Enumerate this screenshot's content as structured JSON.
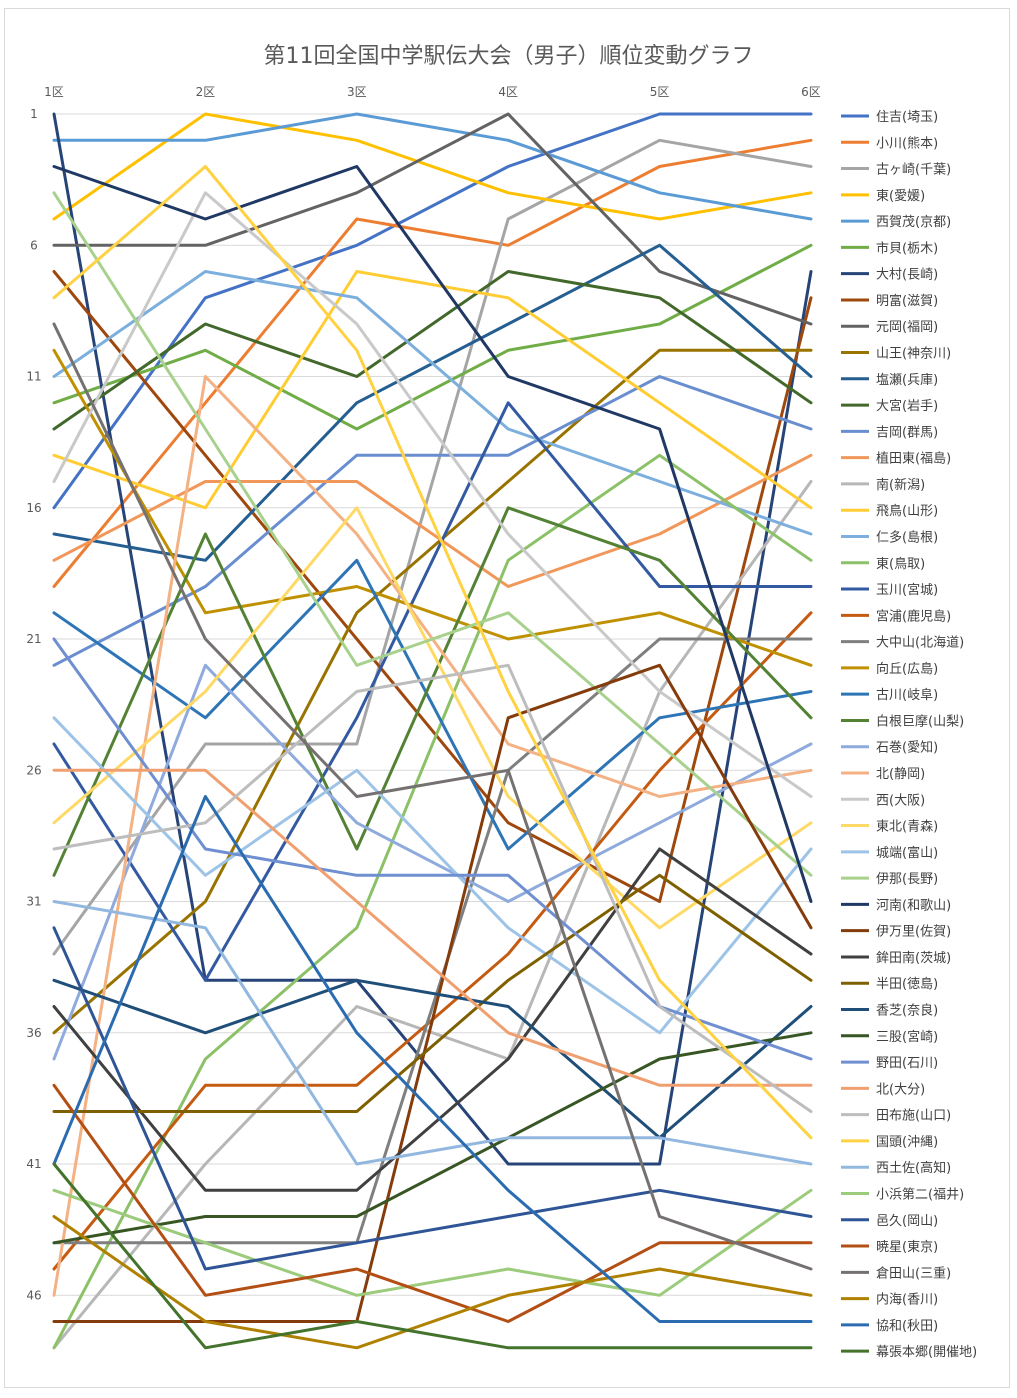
{
  "chart_data": {
    "type": "line",
    "title": "第11回全国中学駅伝大会（男子）順位変動グラフ",
    "categories": [
      "1区",
      "2区",
      "3区",
      "4区",
      "5区",
      "6区"
    ],
    "y_ticks": [
      "1",
      "6",
      "11",
      "16",
      "21",
      "26",
      "31",
      "36",
      "41",
      "46"
    ],
    "y_tick_values": [
      1,
      6,
      11,
      16,
      21,
      26,
      31,
      36,
      41,
      46
    ],
    "ylim": [
      1,
      48
    ],
    "y_reversed": true,
    "grid": true,
    "legend_position": "right",
    "series": [
      {
        "name": "住吉(埼玉)",
        "color": "#4472C4",
        "values": [
          16,
          8,
          6,
          3,
          1,
          1
        ]
      },
      {
        "name": "小川(熊本)",
        "color": "#ED7D31",
        "values": [
          19,
          12,
          5,
          6,
          3,
          2
        ]
      },
      {
        "name": "古ヶ崎(千葉)",
        "color": "#A5A5A5",
        "values": [
          33,
          25,
          25,
          5,
          2,
          3
        ]
      },
      {
        "name": "東(愛媛)",
        "color": "#FFC000",
        "values": [
          5,
          1,
          2,
          4,
          5,
          4
        ]
      },
      {
        "name": "西賀茂(京都)",
        "color": "#5B9BD5",
        "values": [
          2,
          2,
          1,
          2,
          4,
          5
        ]
      },
      {
        "name": "市貝(栃木)",
        "color": "#70AD47",
        "values": [
          12,
          10,
          13,
          10,
          9,
          6
        ]
      },
      {
        "name": "大村(長崎)",
        "color": "#264478",
        "values": [
          1,
          34,
          34,
          41,
          41,
          7
        ]
      },
      {
        "name": "明富(滋賀)",
        "color": "#9E480E",
        "values": [
          7,
          14,
          21,
          28,
          31,
          8
        ]
      },
      {
        "name": "元岡(福岡)",
        "color": "#636363",
        "values": [
          6,
          6,
          4,
          1,
          7,
          9
        ]
      },
      {
        "name": "山王(神奈川)",
        "color": "#997300",
        "values": [
          36,
          31,
          20,
          15,
          10,
          10
        ]
      },
      {
        "name": "塩瀬(兵庫)",
        "color": "#255E91",
        "values": [
          17,
          18,
          12,
          9,
          6,
          11
        ]
      },
      {
        "name": "大宮(岩手)",
        "color": "#43682B",
        "values": [
          13,
          9,
          11,
          7,
          8,
          12
        ]
      },
      {
        "name": "吉岡(群馬)",
        "color": "#698ED0",
        "values": [
          22,
          19,
          14,
          14,
          11,
          13
        ]
      },
      {
        "name": "植田東(福島)",
        "color": "#F1975A",
        "values": [
          18,
          15,
          15,
          19,
          17,
          14
        ]
      },
      {
        "name": "南(新潟)",
        "color": "#B7B7B7",
        "values": [
          48,
          41,
          35,
          37,
          23,
          15
        ]
      },
      {
        "name": "飛鳥(山形)",
        "color": "#FFCD33",
        "values": [
          14,
          16,
          7,
          8,
          12,
          16
        ]
      },
      {
        "name": "仁多(島根)",
        "color": "#7CAFDD",
        "values": [
          11,
          7,
          8,
          13,
          15,
          17
        ]
      },
      {
        "name": "東(鳥取)",
        "color": "#8CC168",
        "values": [
          48,
          37,
          32,
          18,
          14,
          18
        ]
      },
      {
        "name": "玉川(宮城)",
        "color": "#335AA1",
        "values": [
          25,
          34,
          24,
          12,
          19,
          19
        ]
      },
      {
        "name": "宮浦(鹿児島)",
        "color": "#C55A11",
        "values": [
          45,
          38,
          38,
          33,
          26,
          20
        ]
      },
      {
        "name": "大中山(北海道)",
        "color": "#7F7F7F",
        "values": [
          44,
          44,
          44,
          26,
          21,
          21
        ]
      },
      {
        "name": "向丘(広島)",
        "color": "#BF9000",
        "values": [
          10,
          20,
          19,
          21,
          20,
          22
        ]
      },
      {
        "name": "古川(岐阜)",
        "color": "#2E75B6",
        "values": [
          20,
          24,
          18,
          29,
          24,
          23
        ]
      },
      {
        "name": "白根巨摩(山梨)",
        "color": "#548235",
        "values": [
          30,
          17,
          29,
          16,
          18,
          24
        ]
      },
      {
        "name": "石巻(愛知)",
        "color": "#8FAADC",
        "values": [
          37,
          22,
          28,
          31,
          28,
          25
        ]
      },
      {
        "name": "北(静岡)",
        "color": "#F4B183",
        "values": [
          46,
          11,
          17,
          25,
          27,
          26
        ]
      },
      {
        "name": "西(大阪)",
        "color": "#C9C9C9",
        "values": [
          15,
          4,
          9,
          17,
          23,
          27
        ]
      },
      {
        "name": "東北(青森)",
        "color": "#FFD966",
        "values": [
          28,
          23,
          16,
          27,
          32,
          28
        ]
      },
      {
        "name": "城端(富山)",
        "color": "#9DC3E6",
        "values": [
          24,
          30,
          26,
          32,
          36,
          29
        ]
      },
      {
        "name": "伊那(長野)",
        "color": "#A9D18E",
        "values": [
          4,
          13,
          22,
          20,
          25,
          30
        ]
      },
      {
        "name": "河南(和歌山)",
        "color": "#203864",
        "values": [
          3,
          5,
          3,
          11,
          13,
          31
        ]
      },
      {
        "name": "伊万里(佐賀)",
        "color": "#843C0C",
        "values": [
          47,
          47,
          47,
          24,
          22,
          32
        ]
      },
      {
        "name": "鉾田南(茨城)",
        "color": "#404040",
        "values": [
          35,
          42,
          42,
          37,
          29,
          33
        ]
      },
      {
        "name": "半田(徳島)",
        "color": "#7F6000",
        "values": [
          39,
          39,
          39,
          34,
          30,
          34
        ]
      },
      {
        "name": "香芝(奈良)",
        "color": "#1F4E79",
        "values": [
          34,
          36,
          34,
          35,
          40,
          35
        ]
      },
      {
        "name": "三股(宮崎)",
        "color": "#375623",
        "values": [
          44,
          43,
          43,
          40,
          37,
          36
        ]
      },
      {
        "name": "野田(石川)",
        "color": "#6F8FD0",
        "values": [
          21,
          29,
          30,
          30,
          35,
          37
        ]
      },
      {
        "name": "北(大分)",
        "color": "#F0A070",
        "values": [
          26,
          26,
          31,
          36,
          38,
          38
        ]
      },
      {
        "name": "田布施(山口)",
        "color": "#BDBDBD",
        "values": [
          29,
          28,
          23,
          22,
          35,
          39
        ]
      },
      {
        "name": "国頭(沖縄)",
        "color": "#FFD243",
        "values": [
          8,
          3,
          10,
          23,
          34,
          40
        ]
      },
      {
        "name": "西土佐(高知)",
        "color": "#93B8E0",
        "values": [
          31,
          32,
          41,
          40,
          40,
          41
        ]
      },
      {
        "name": "小浜第二(福井)",
        "color": "#9CCB7C",
        "values": [
          42,
          44,
          46,
          45,
          46,
          42
        ]
      },
      {
        "name": "邑久(岡山)",
        "color": "#2F5597",
        "values": [
          32,
          45,
          44,
          43,
          42,
          43
        ]
      },
      {
        "name": "暁星(東京)",
        "color": "#B34F14",
        "values": [
          38,
          46,
          45,
          47,
          44,
          44
        ]
      },
      {
        "name": "倉田山(三重)",
        "color": "#767171",
        "values": [
          9,
          21,
          27,
          26,
          43,
          45
        ]
      },
      {
        "name": "内海(香川)",
        "color": "#B08100",
        "values": [
          43,
          47,
          48,
          46,
          45,
          46
        ]
      },
      {
        "name": "協和(秋田)",
        "color": "#2B6CB0",
        "values": [
          41,
          27,
          36,
          42,
          47,
          47
        ]
      },
      {
        "name": "幕張本郷(開催地)",
        "color": "#44732C",
        "values": [
          41,
          48,
          47,
          48,
          48,
          48
        ]
      }
    ]
  }
}
